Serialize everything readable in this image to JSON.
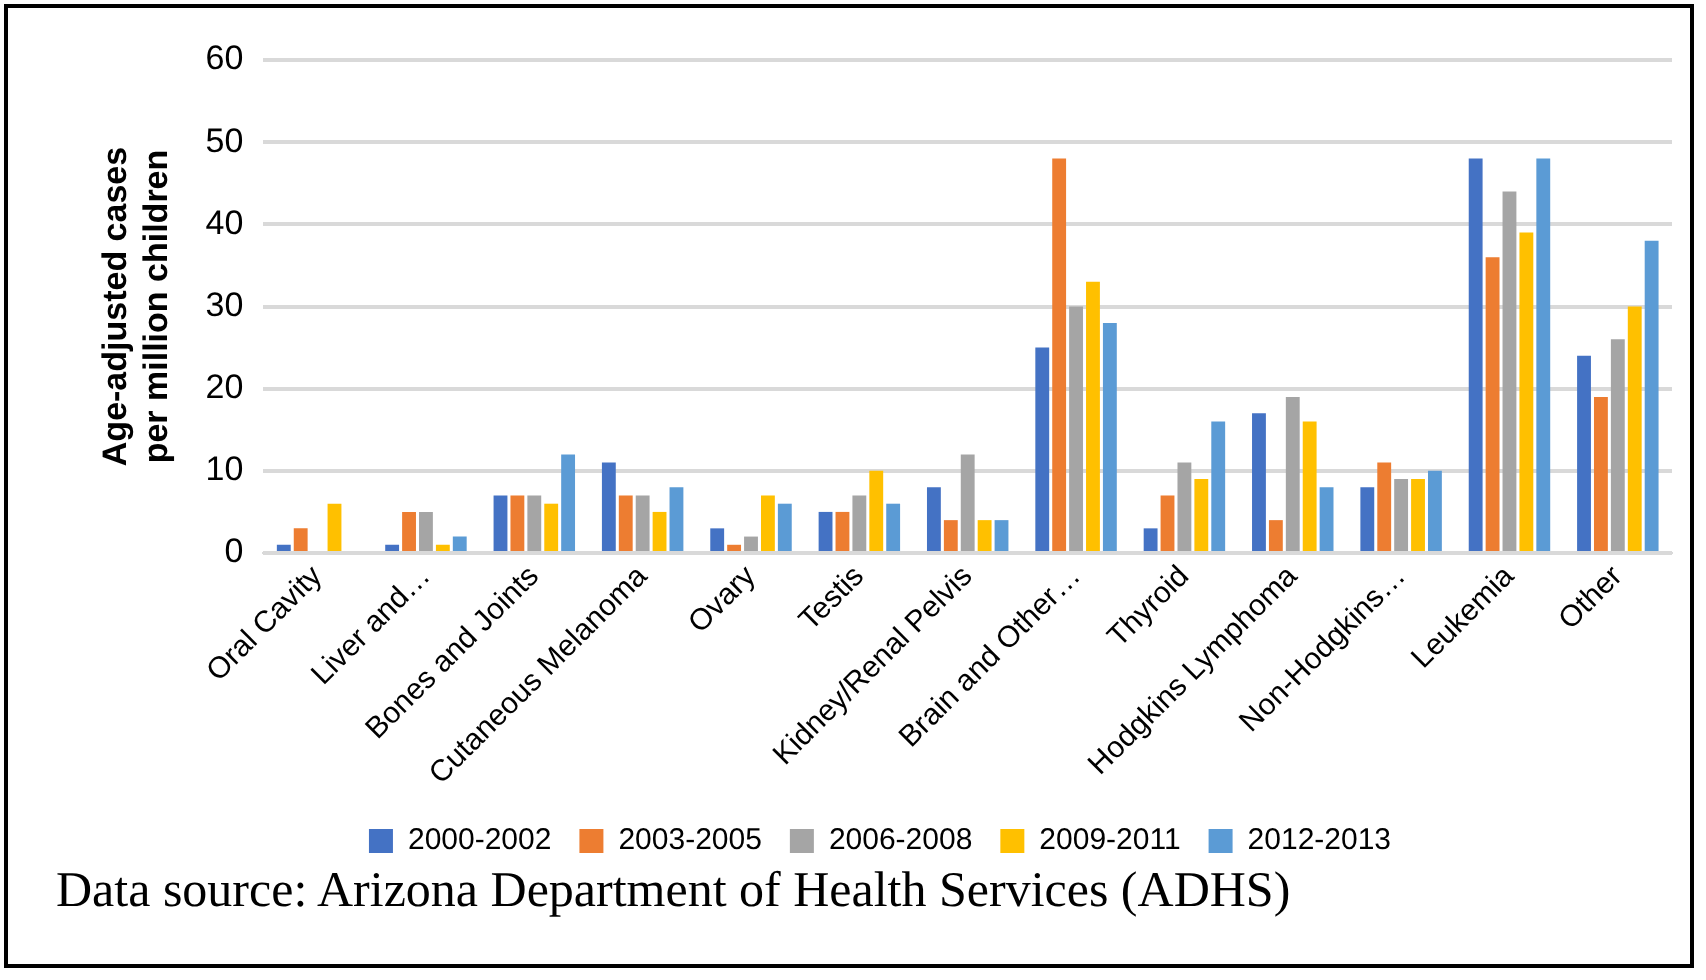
{
  "chart_data": {
    "type": "bar",
    "ylabel": "Age-adjusted cases per million children",
    "categories": [
      "Oral Cavity",
      "Liver and…",
      "Bones and Joints",
      "Cutaneous Melanoma",
      "Ovary",
      "Testis",
      "Kidney/Renal Pelvis",
      "Brain and Other…",
      "Thyroid",
      "Hodgkins Lymphoma",
      "Non-Hodgkins…",
      "Leukemia",
      "Other"
    ],
    "series": [
      {
        "name": "2000-2002",
        "color": "#4472c4",
        "values": [
          1,
          1,
          7,
          11,
          3,
          5,
          8,
          25,
          3,
          17,
          8,
          48,
          24
        ]
      },
      {
        "name": "2003-2005",
        "color": "#ed7d31",
        "values": [
          3,
          5,
          7,
          7,
          1,
          5,
          4,
          48,
          7,
          4,
          11,
          36,
          19
        ]
      },
      {
        "name": "2006-2008",
        "color": "#a5a5a5",
        "values": [
          null,
          5,
          7,
          7,
          2,
          7,
          12,
          30,
          11,
          19,
          9,
          44,
          26
        ]
      },
      {
        "name": "2009-2011",
        "color": "#ffc000",
        "values": [
          6,
          1,
          6,
          5,
          7,
          10,
          4,
          33,
          9,
          16,
          9,
          39,
          30
        ]
      },
      {
        "name": "2012-2013",
        "color": "#5b9bd5",
        "values": [
          null,
          2,
          12,
          8,
          6,
          6,
          4,
          28,
          16,
          8,
          10,
          48,
          38
        ]
      }
    ],
    "ylim": [
      0,
      60
    ],
    "yticks": [
      0,
      10,
      20,
      30,
      40,
      50,
      60
    ],
    "grid": "y",
    "legend": "bottom",
    "annotations": [
      "Data source: Arizona Department of Health Services (ADHS)"
    ]
  }
}
